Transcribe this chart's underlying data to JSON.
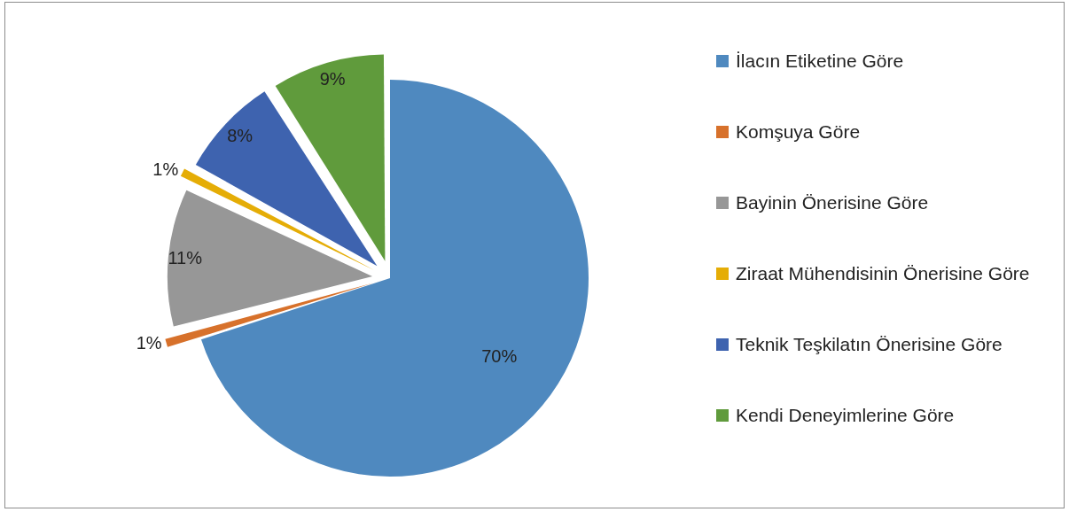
{
  "chart_data": {
    "type": "pie",
    "categories": [
      "İlacın Etiketine Göre",
      "Komşuya Göre",
      "Bayinin Önerisine Göre",
      "Ziraat Mühendisinin Önerisine Göre",
      "Teknik Teşkilatın Önerisine Göre",
      "Kendi Deneyimlerine Göre"
    ],
    "values": [
      70,
      1,
      11,
      1,
      8,
      9
    ],
    "colors": [
      "#4f89bf",
      "#d7712b",
      "#979797",
      "#e5ad06",
      "#3e63af",
      "#609b3c"
    ],
    "value_labels": [
      "70%",
      "1%",
      "11%",
      "1%",
      "8%",
      "9%"
    ],
    "legend": "right"
  }
}
